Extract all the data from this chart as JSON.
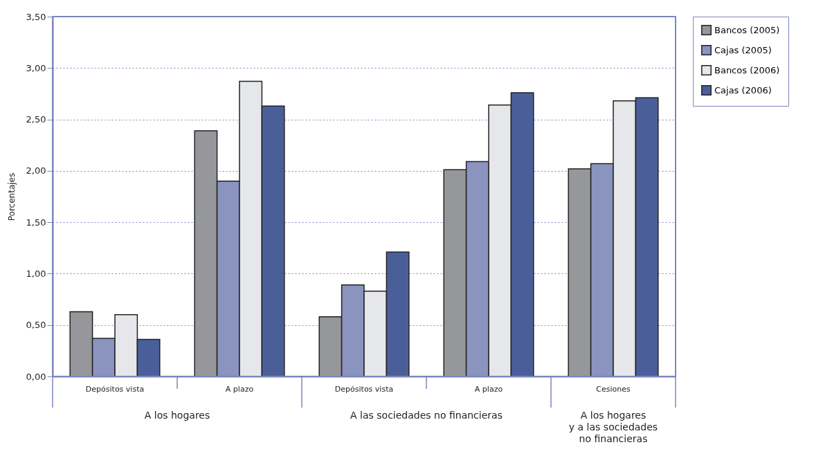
{
  "chart_data": {
    "type": "bar",
    "ylabel": "Porcentajes",
    "categories": [
      "Depósitos vista",
      "A plazo",
      "Depósitos vista",
      "A plazo",
      "Cesiones"
    ],
    "series": [
      {
        "name": "Bancos (2005)",
        "color": "#95979b",
        "values": [
          0.63,
          2.39,
          0.58,
          2.01,
          2.02
        ]
      },
      {
        "name": "Cajas (2005)",
        "color": "#8a94bf",
        "values": [
          0.37,
          1.9,
          0.89,
          2.09,
          2.07
        ]
      },
      {
        "name": "Bancos (2006)",
        "color": "#e6e7ea",
        "values": [
          0.6,
          2.87,
          0.83,
          2.64,
          2.68
        ]
      },
      {
        "name": "Cajas (2006)",
        "color": "#4a5f9a",
        "values": [
          0.36,
          2.63,
          1.21,
          2.76,
          2.71
        ]
      }
    ],
    "ylim": [
      0,
      3.5
    ],
    "yticks": [
      {
        "value": 0,
        "label": "0,00"
      },
      {
        "value": 0.5,
        "label": "0,50"
      },
      {
        "value": 1,
        "label": "1,00"
      },
      {
        "value": 1.5,
        "label": "1,50"
      },
      {
        "value": 2,
        "label": "2,00"
      },
      {
        "value": 2.5,
        "label": "2,50"
      },
      {
        "value": 3,
        "label": "3,00"
      },
      {
        "value": 3.5,
        "label": "3,50"
      }
    ],
    "grid": "y",
    "legend": "top right",
    "annotations": [
      "A los hogares",
      "A las sociedades no financieras",
      "A los hogares\ny a las sociedades\nno financieras"
    ]
  }
}
